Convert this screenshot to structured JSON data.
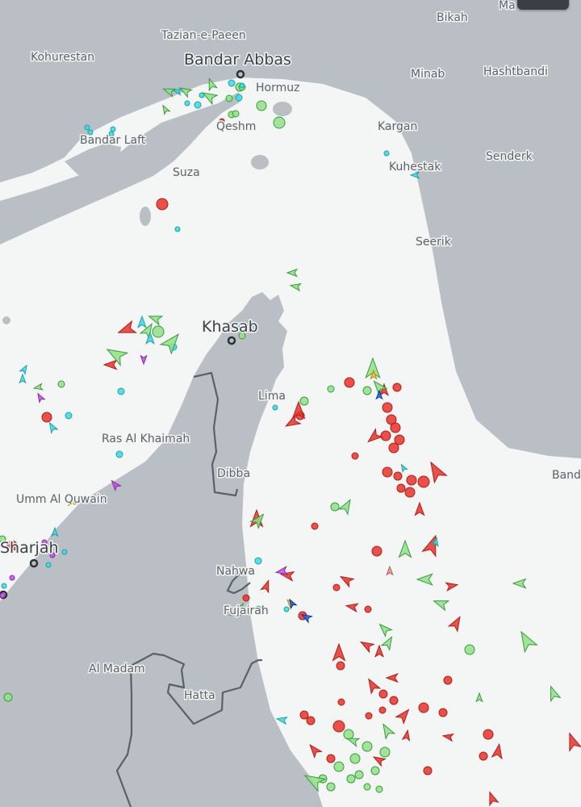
{
  "map": {
    "colors": {
      "land": "#b9bfc5",
      "water": "#f4f5f5"
    },
    "labels": {
      "bikah": "Bikah",
      "ma": "Ma",
      "tazian": "Tazian-e-Paeen",
      "kohurestan": "Kohurestan",
      "bandar_abbas": "Bandar Abbas",
      "minab": "Minab",
      "hashtbandi": "Hashtbandi",
      "hormuz": "Hormuz",
      "qeshm": "Qeshm",
      "bandar_laft": "Bandar Laft",
      "kargan": "Kargan",
      "senderk": "Senderk",
      "suza": "Suza",
      "kuhestak": "Kuhestak",
      "seerik": "Seerik",
      "khasab": "Khasab",
      "lima": "Lima",
      "ras_al_khaimah": "Ras Al Khaimah",
      "dibba": "Dibba",
      "band": "Band",
      "umm_al_quwain": "Umm Al Quwain",
      "sharjah": "Sharjah",
      "nahwa": "Nahwa",
      "fujairah": "Fujairah",
      "al_madam": "Al Madam",
      "hatta": "Hatta"
    },
    "vessel_colors": {
      "tanker": "#e8332c",
      "cargo": "#8fe088",
      "passenger": "#2060f0",
      "tug_special": "#3dd8e0",
      "pleasure": "#c24ee6",
      "high_speed": "#f2c21c",
      "other": "#f08a8a"
    }
  }
}
